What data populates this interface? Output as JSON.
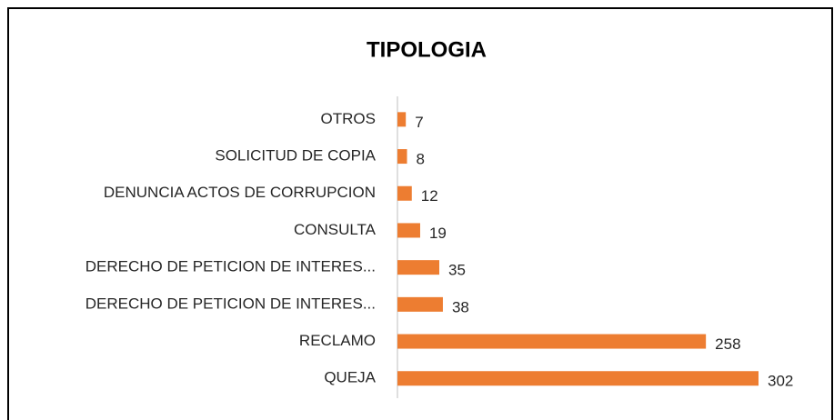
{
  "chart_data": {
    "type": "bar",
    "orientation": "horizontal",
    "title": "TIPOLOGIA",
    "categories": [
      "OTROS",
      "SOLICITUD DE COPIA",
      "DENUNCIA ACTOS DE CORRUPCION",
      "CONSULTA",
      "DERECHO DE PETICION DE INTERES...",
      "DERECHO DE PETICION DE INTERES...",
      "RECLAMO",
      "QUEJA"
    ],
    "values": [
      7,
      8,
      12,
      19,
      35,
      38,
      258,
      302
    ],
    "color": "#ed7d31"
  }
}
